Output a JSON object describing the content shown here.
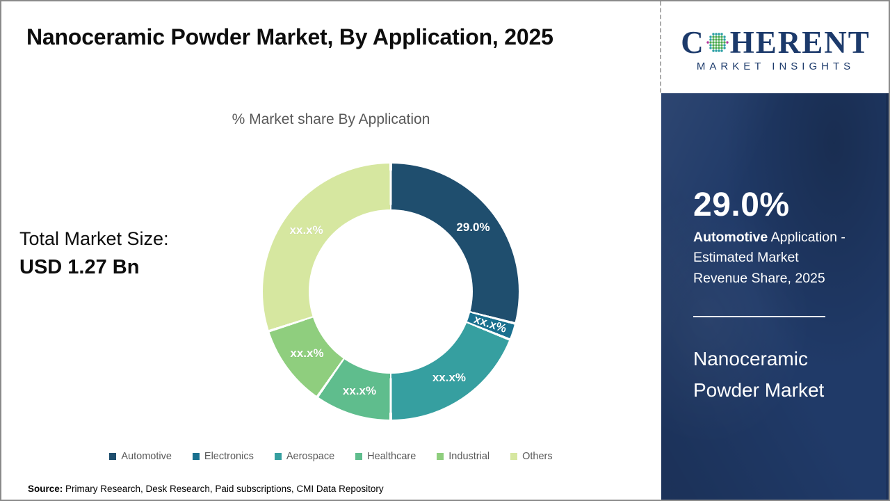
{
  "header": {
    "title": "Nanoceramic Powder Market, By Application, 2025"
  },
  "logo": {
    "part1": "C",
    "part2": "HERENT",
    "subtitle": "MARKET INSIGHTS",
    "navy": "#1c3a6b",
    "globe_green": "#4aa94d",
    "globe_teal": "#2a9fa4",
    "globe_magenta": "#b5379d"
  },
  "left_panel": {
    "total_label": "Total Market Size:",
    "total_value": "USD 1.27 Bn"
  },
  "chart_data": {
    "type": "pie",
    "donut": true,
    "title": "% Market share By Application",
    "legend_position": "bottom",
    "start_angle_deg": 0,
    "series": [
      {
        "name": "Automotive",
        "label": "29.0%",
        "value": 29.0,
        "color": "#1F4E6E"
      },
      {
        "name": "Electronics",
        "label": "xx.x%",
        "value": 2.1,
        "color": "#19708F"
      },
      {
        "name": "Aerospace",
        "label": "xx.x%",
        "value": 18.9,
        "color": "#369FA0"
      },
      {
        "name": "Healthcare",
        "label": "xx.x%",
        "value": 9.7,
        "color": "#5FBD8D"
      },
      {
        "name": "Industrial",
        "label": "xx.x%",
        "value": 10.3,
        "color": "#8FCE7E"
      },
      {
        "name": "Others",
        "label": "xx.x%",
        "value": 30.0,
        "color": "#D6E7A0"
      }
    ]
  },
  "sidebar": {
    "bg_color": "#203a68",
    "stat_value": "29.0%",
    "stat_bold": "Automotive",
    "stat_rest": " Application - Estimated Market Revenue Share, 2025",
    "product_title": "Nanoceramic Powder Market"
  },
  "footer": {
    "source_label": "Source:",
    "source_text": " Primary Research, Desk Research, Paid subscriptions, CMI Data Repository"
  }
}
